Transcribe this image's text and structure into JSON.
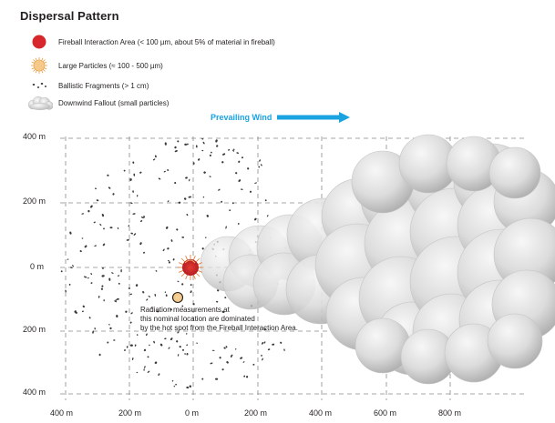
{
  "title": "Dispersal Pattern",
  "legend": [
    {
      "icon": "fireball-icon",
      "label": "Fireball Interaction Area (< 100 µm, about 5% of material in fireball)"
    },
    {
      "icon": "large-particle-icon",
      "label": "Large Particles (≈ 100 - 500 µm)"
    },
    {
      "icon": "ballistic-fragments-icon",
      "label": "Ballistic Fragments (> 1 cm)"
    },
    {
      "icon": "fallout-cloud-icon",
      "label": "Downwind Fallout (small particles)"
    }
  ],
  "wind": {
    "label": "Prevailing Wind",
    "color": "#1aa3e0"
  },
  "y_axis": [
    "400 m",
    "200 m",
    "0 m",
    "200 m",
    "400 m"
  ],
  "x_axis": [
    "400 m",
    "200 m",
    "0 m",
    "200 m",
    "400 m",
    "600 m",
    "800 m"
  ],
  "note": [
    "Radiation measurements at",
    "this nominal location are dominated",
    "by the hot spot from the Fireball Interaction Area."
  ],
  "colors": {
    "fireball": "#d7262c",
    "large_particle": "#f6c889",
    "fragment": "#3a3a3a",
    "cloud": "#d4d4d4",
    "grid": "#8a8a8a"
  }
}
